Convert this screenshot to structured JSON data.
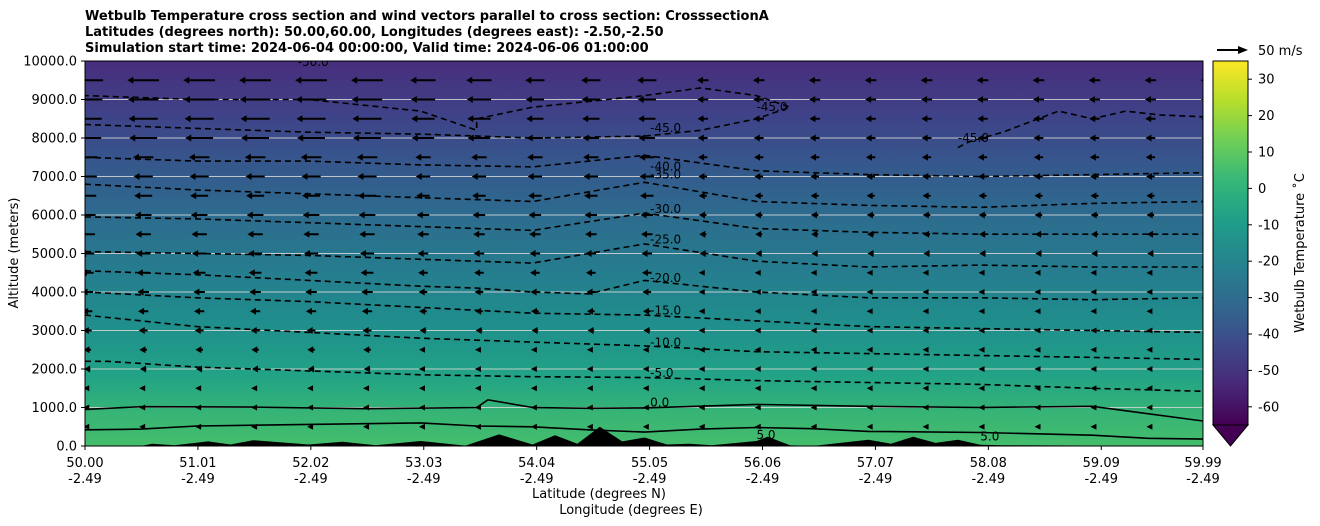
{
  "chart_data": {
    "type": "heatmap",
    "title_lines": [
      "Wetbulb Temperature cross section and wind vectors parallel to cross section: CrosssectionA",
      "Latitudes (degrees north): 50.00,60.00, Longitudes (degrees east): -2.50,-2.50",
      "Simulation start time: 2024-06-04 00:00:00, Valid time: 2024-06-06 01:00:00"
    ],
    "ylabel": "Altitude (meters)",
    "xlabel_lat": "Latitude (degrees N)",
    "xlabel_lon": "Longitude (degrees E)",
    "ylim": [
      0,
      10000
    ],
    "xlim": [
      50.0,
      59.99
    ],
    "yticks": [
      0,
      1000,
      2000,
      3000,
      4000,
      5000,
      6000,
      7000,
      8000,
      9000,
      10000
    ],
    "ytick_labels": [
      "0.0",
      "1000.0",
      "2000.0",
      "3000.0",
      "4000.0",
      "5000.0",
      "6000.0",
      "7000.0",
      "8000.0",
      "9000.0",
      "10000.0"
    ],
    "xticks_lat": [
      "50.00",
      "51.01",
      "52.02",
      "53.03",
      "54.04",
      "55.05",
      "56.06",
      "57.07",
      "58.08",
      "59.09",
      "59.99"
    ],
    "xticks_lon": [
      "-2.49",
      "-2.49",
      "-2.49",
      "-2.49",
      "-2.49",
      "-2.49",
      "-2.49",
      "-2.49",
      "-2.49",
      "-2.49",
      "-2.49"
    ],
    "horizontal_gridlines": true,
    "colorbar": {
      "label": "Wetbulb Temperature ˚C",
      "ticks": [
        30,
        20,
        10,
        0,
        -10,
        -20,
        -30,
        -40,
        -50,
        -60
      ],
      "range": [
        -65,
        35
      ],
      "extend": "min",
      "colormap": [
        "#fde725",
        "#b5de2b",
        "#6ece58",
        "#35b779",
        "#1f9e89",
        "#26828e",
        "#31688e",
        "#3e4989",
        "#482878",
        "#440154"
      ]
    },
    "contour_labels": [
      {
        "text": "-50.0",
        "lat": 51.9,
        "alt": 9870
      },
      {
        "text": "-45.0",
        "lat": 56.0,
        "alt": 8700
      },
      {
        "text": "-45.0",
        "lat": 57.8,
        "alt": 7900
      },
      {
        "text": "-45.0",
        "lat": 55.05,
        "alt": 8150
      },
      {
        "text": "-40.0",
        "lat": 55.05,
        "alt": 7150
      },
      {
        "text": "-35.0",
        "lat": 55.05,
        "alt": 6950
      },
      {
        "text": "-30.0",
        "lat": 55.05,
        "alt": 6050
      },
      {
        "text": "-25.0",
        "lat": 55.05,
        "alt": 5260
      },
      {
        "text": "-20.0",
        "lat": 55.05,
        "alt": 4260
      },
      {
        "text": "-15.0",
        "lat": 55.05,
        "alt": 3410
      },
      {
        "text": "-10.0",
        "lat": 55.05,
        "alt": 2580
      },
      {
        "text": "-5.0",
        "lat": 55.05,
        "alt": 1790
      },
      {
        "text": "0.0",
        "lat": 55.05,
        "alt": 1020
      },
      {
        "text": "5.0",
        "lat": 58.0,
        "alt": 140
      },
      {
        "text": "5.0",
        "lat": 56.0,
        "alt": 180
      }
    ],
    "wind_reference": {
      "label": "50 m/s"
    },
    "series": [
      {
        "name": "isotherm 0",
        "style": "solid",
        "lat": [
          50.0,
          50.5,
          51.5,
          52.5,
          53.5,
          53.6,
          54.0,
          54.5,
          55.0,
          56.0,
          57.0,
          58.0,
          59.0,
          59.99
        ],
        "alt": [
          950,
          1020,
          1010,
          970,
          1000,
          1200,
          1000,
          980,
          990,
          1080,
          1030,
          1000,
          1030,
          650
        ]
      },
      {
        "name": "isotherm 5",
        "style": "solid",
        "lat": [
          50.0,
          50.5,
          51.0,
          52.0,
          53.0,
          53.5,
          54.0,
          54.5,
          55.0,
          55.5,
          56.0,
          56.5,
          57.0,
          58.0,
          59.0,
          59.5,
          59.99
        ],
        "alt": [
          420,
          440,
          520,
          560,
          600,
          520,
          500,
          420,
          360,
          440,
          480,
          450,
          380,
          350,
          280,
          200,
          180
        ]
      },
      {
        "name": "isotherm -5",
        "style": "dashed",
        "lat": [
          50.0,
          50.2,
          51.0,
          52.0,
          53.0,
          54.0,
          55.0,
          56.0,
          57.0,
          58.0,
          59.0,
          59.99
        ],
        "alt": [
          2200,
          2200,
          2050,
          1950,
          1850,
          1800,
          1780,
          1700,
          1650,
          1600,
          1500,
          1420
        ]
      },
      {
        "name": "isotherm -10",
        "style": "dashed",
        "lat": [
          50.0,
          51.0,
          52.0,
          53.0,
          54.0,
          55.0,
          56.0,
          57.0,
          58.0,
          59.0,
          59.99
        ],
        "alt": [
          3400,
          3100,
          2950,
          2800,
          2700,
          2600,
          2450,
          2400,
          2350,
          2300,
          2250
        ]
      },
      {
        "name": "isotherm -15",
        "style": "dashed",
        "lat": [
          50.0,
          51.0,
          52.0,
          53.0,
          54.0,
          55.0,
          56.0,
          57.0,
          58.0,
          59.0,
          59.99
        ],
        "alt": [
          4000,
          3850,
          3750,
          3600,
          3450,
          3400,
          3250,
          3100,
          3050,
          3000,
          2950
        ]
      },
      {
        "name": "isotherm -20",
        "style": "dashed",
        "lat": [
          50.0,
          51.0,
          52.0,
          53.0,
          53.5,
          54.0,
          54.5,
          55.0,
          56.0,
          57.0,
          58.0,
          59.0,
          59.99
        ],
        "alt": [
          4550,
          4450,
          4300,
          4150,
          4100,
          4000,
          3950,
          4300,
          4000,
          3850,
          3850,
          3800,
          3850
        ]
      },
      {
        "name": "isotherm -25",
        "style": "dashed",
        "lat": [
          50.0,
          51.0,
          52.0,
          53.0,
          54.0,
          55.0,
          56.0,
          57.0,
          58.0,
          59.0,
          59.99
        ],
        "alt": [
          5050,
          5000,
          4950,
          4850,
          4750,
          5250,
          4800,
          4650,
          4700,
          4650,
          4650
        ]
      },
      {
        "name": "isotherm -30",
        "style": "dashed",
        "lat": [
          50.0,
          51.0,
          52.0,
          53.0,
          54.0,
          55.0,
          56.0,
          57.0,
          58.0,
          59.0,
          59.99
        ],
        "alt": [
          5950,
          5900,
          5800,
          5700,
          5600,
          6050,
          5650,
          5550,
          5500,
          5500,
          5500
        ]
      },
      {
        "name": "isotherm -35",
        "style": "dashed",
        "lat": [
          50.0,
          51.0,
          52.0,
          53.0,
          54.0,
          55.0,
          56.0,
          57.0,
          58.0,
          59.0,
          59.99
        ],
        "alt": [
          6800,
          6650,
          6550,
          6450,
          6350,
          6850,
          6350,
          6250,
          6200,
          6300,
          6350
        ]
      },
      {
        "name": "isotherm -40",
        "style": "dashed",
        "lat": [
          50.0,
          51.0,
          52.0,
          53.0,
          54.0,
          55.0,
          56.0,
          57.0,
          58.0,
          59.0,
          59.99
        ],
        "alt": [
          7500,
          7400,
          7400,
          7300,
          7250,
          7550,
          7150,
          7050,
          7000,
          7050,
          7100
        ]
      },
      {
        "name": "isotherm -45 west",
        "style": "dashed",
        "lat": [
          50.0,
          51.0,
          52.0,
          53.0,
          54.0,
          55.0,
          55.5,
          56.0,
          56.3,
          56.0,
          55.5,
          55.0,
          54.0,
          53.5,
          53.5,
          53.0,
          52.0,
          51.0,
          50.0
        ],
        "alt": [
          8350,
          8250,
          8150,
          8100,
          8000,
          8050,
          8200,
          8500,
          8800,
          9100,
          9300,
          9100,
          8800,
          8500,
          8200,
          8700,
          9000,
          9000,
          9100
        ]
      },
      {
        "name": "isotherm -45 east",
        "style": "dashed",
        "lat": [
          57.8,
          57.9,
          58.2,
          58.7,
          59.0,
          59.3,
          59.6,
          59.99
        ],
        "alt": [
          7750,
          7900,
          8150,
          8700,
          8500,
          8700,
          8600,
          8550
        ]
      }
    ],
    "terrain": {
      "name": "orography",
      "lat": [
        50.0,
        50.5,
        50.6,
        50.8,
        51.1,
        51.3,
        51.5,
        52.0,
        52.3,
        52.6,
        53.0,
        53.4,
        53.7,
        54.0,
        54.2,
        54.4,
        54.6,
        54.8,
        55.0,
        55.2,
        55.4,
        55.6,
        56.0,
        56.1,
        56.3,
        56.5,
        57.0,
        57.2,
        57.4,
        57.6,
        57.8,
        58.0,
        58.2,
        59.99
      ],
      "alt": [
        0,
        0,
        60,
        20,
        120,
        40,
        150,
        40,
        110,
        20,
        130,
        10,
        300,
        40,
        280,
        60,
        500,
        120,
        220,
        40,
        60,
        20,
        130,
        240,
        20,
        0,
        160,
        60,
        240,
        80,
        160,
        30,
        20,
        0
      ]
    }
  }
}
